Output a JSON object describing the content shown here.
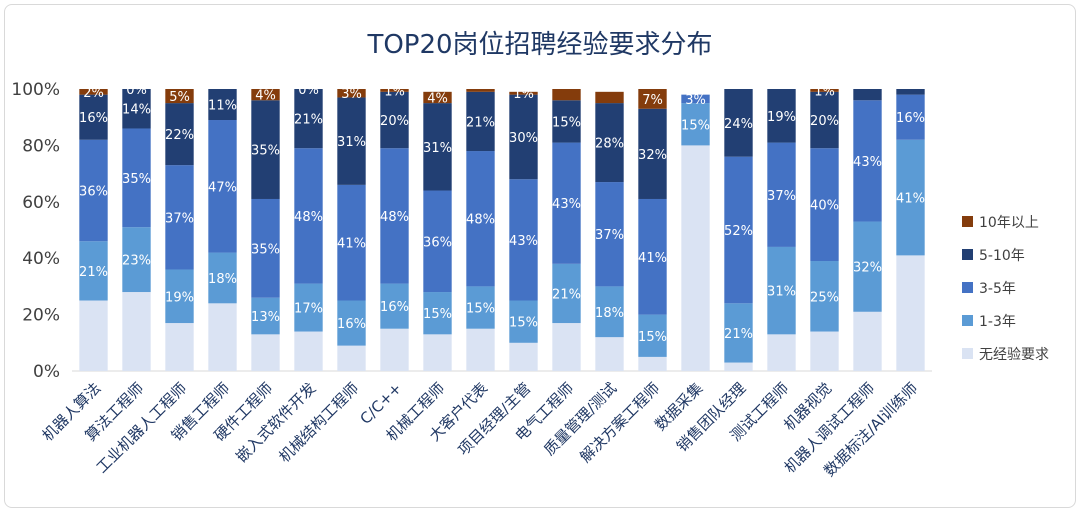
{
  "chart_data": {
    "type": "bar",
    "stacked": true,
    "percent": true,
    "title": "TOP20岗位招聘经验要求分布",
    "ylim": [
      0,
      100
    ],
    "yticks": [
      "0%",
      "20%",
      "40%",
      "60%",
      "80%",
      "100%"
    ],
    "legend_position": "right",
    "categories": [
      "机器人算法",
      "算法工程师",
      "工业机器人工程师",
      "销售工程师",
      "硬件工程师",
      "嵌入式软件开发",
      "机械结构工程师",
      "C/C++",
      "机械工程师",
      "大客户代表",
      "项目经理/主管",
      "电气工程师",
      "质量管理/测试",
      "解决方案工程师",
      "数据采集",
      "销售团队经理",
      "测试工程师",
      "机器视觉",
      "机器人调试工程师",
      "数据标注/AI训练师"
    ],
    "series": [
      {
        "name": "无经验要求",
        "color": "#dae3f3",
        "values": [
          25,
          28,
          17,
          24,
          13,
          14,
          9,
          15,
          13,
          15,
          10,
          17,
          12,
          5,
          80,
          3,
          13,
          14,
          21,
          41
        ],
        "labels": [
          null,
          null,
          null,
          null,
          null,
          null,
          null,
          null,
          null,
          null,
          null,
          null,
          null,
          null,
          null,
          null,
          null,
          null,
          null,
          null
        ]
      },
      {
        "name": "1-3年",
        "color": "#5b9bd5",
        "values": [
          21,
          23,
          19,
          18,
          13,
          17,
          16,
          16,
          15,
          15,
          15,
          21,
          18,
          15,
          15,
          21,
          31,
          25,
          32,
          41
        ],
        "labels": [
          "21%",
          "23%",
          "19%",
          "18%",
          "13%",
          "17%",
          "16%",
          "16%",
          "15%",
          "15%",
          "15%",
          "21%",
          "18%",
          "15%",
          "15%",
          "21%",
          "31%",
          "25%",
          "32%",
          "41%"
        ]
      },
      {
        "name": "3-5年",
        "color": "#4472c4",
        "values": [
          36,
          35,
          37,
          47,
          35,
          48,
          41,
          48,
          36,
          48,
          43,
          43,
          37,
          41,
          3,
          52,
          37,
          40,
          43,
          16
        ],
        "labels": [
          "36%",
          "35%",
          "37%",
          "47%",
          "35%",
          "48%",
          "41%",
          "48%",
          "36%",
          "48%",
          "43%",
          "43%",
          "37%",
          "41%",
          "3%",
          "52%",
          "37%",
          "40%",
          "43%",
          "16%"
        ]
      },
      {
        "name": "5-10年",
        "color": "#223f73",
        "values": [
          16,
          14,
          22,
          11,
          35,
          21,
          31,
          20,
          31,
          21,
          30,
          15,
          28,
          32,
          0,
          24,
          19,
          20,
          4,
          2
        ],
        "labels": [
          "16%",
          "14%",
          "22%",
          "11%",
          "35%",
          "21%",
          "31%",
          "20%",
          "31%",
          "21%",
          "30%",
          "15%",
          "28%",
          "32%",
          null,
          "24%",
          "19%",
          "20%",
          null,
          null
        ]
      },
      {
        "name": "10年以上",
        "color": "#843c0c",
        "values": [
          2,
          0,
          5,
          0,
          4,
          0,
          3,
          1,
          4,
          1,
          1,
          4,
          4,
          7,
          0,
          0,
          1,
          1,
          0,
          0
        ],
        "labels": [
          "2%",
          "0%",
          "5%",
          null,
          "4%",
          "0%",
          "3%",
          "1%",
          "4%",
          null,
          "1%",
          null,
          null,
          "7%",
          null,
          null,
          null,
          "1%",
          null,
          null
        ]
      }
    ]
  }
}
